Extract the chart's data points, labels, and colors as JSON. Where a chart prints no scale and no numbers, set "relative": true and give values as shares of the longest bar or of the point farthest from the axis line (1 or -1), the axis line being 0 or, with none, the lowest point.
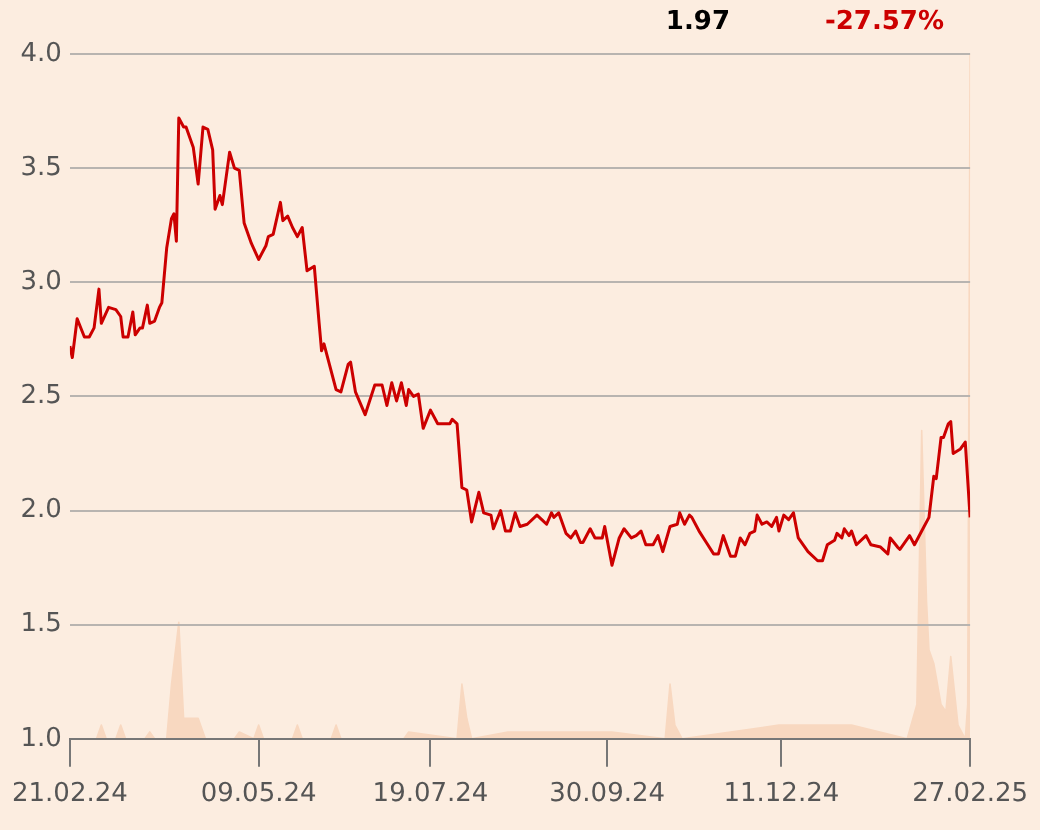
{
  "chart_data": [
    {
      "type": "line",
      "annotations": [
        "1.97",
        "-27.57%"
      ],
      "xlim": [
        "2024-02-21",
        "2025-02-27"
      ],
      "xticks": [
        {
          "value": "2024-02-21",
          "label": "21.02.24"
        },
        {
          "value": "2024-05-09",
          "label": "09.05.24"
        },
        {
          "value": "2024-07-19",
          "label": "19.07.24"
        },
        {
          "value": "2024-09-30",
          "label": "30.09.24"
        },
        {
          "value": "2024-12-11",
          "label": "11.12.24"
        },
        {
          "value": "2025-02-27",
          "label": "27.02.25"
        }
      ],
      "ylim": [
        1,
        4
      ],
      "yticks": [
        {
          "value": 1,
          "label": "1.0"
        },
        {
          "value": 1.5,
          "label": "1.5"
        },
        {
          "value": 2,
          "label": "2.0"
        },
        {
          "value": 2.5,
          "label": "2.5"
        },
        {
          "value": 3,
          "label": "3.0"
        },
        {
          "value": 3.5,
          "label": "3.5"
        },
        {
          "value": 4,
          "label": "4.0"
        }
      ],
      "grid": "y",
      "legend": false,
      "marker": "none",
      "line_style": "solid",
      "x": [
        "2024-02-21",
        "2024-02-22",
        "2024-02-24",
        "2024-02-27",
        "2024-02-29",
        "2024-03-02",
        "2024-03-04",
        "2024-03-05",
        "2024-03-08",
        "2024-03-11",
        "2024-03-13",
        "2024-03-14",
        "2024-03-16",
        "2024-03-18",
        "2024-03-19",
        "2024-03-21",
        "2024-03-22",
        "2024-03-24",
        "2024-03-25",
        "2024-03-27",
        "2024-03-29",
        "2024-03-30",
        "2024-04-01",
        "2024-04-03",
        "2024-04-04",
        "2024-04-05",
        "2024-04-06",
        "2024-04-08",
        "2024-04-09",
        "2024-04-12",
        "2024-04-14",
        "2024-04-16",
        "2024-04-18",
        "2024-04-20",
        "2024-04-21",
        "2024-04-23",
        "2024-04-24",
        "2024-04-27",
        "2024-04-29",
        "2024-05-01",
        "2024-05-03",
        "2024-05-06",
        "2024-05-09",
        "2024-05-12",
        "2024-05-13",
        "2024-05-15",
        "2024-05-18",
        "2024-05-19",
        "2024-05-21",
        "2024-05-23",
        "2024-05-25",
        "2024-05-27",
        "2024-05-29",
        "2024-06-01",
        "2024-06-03",
        "2024-06-04",
        "2024-06-05",
        "2024-06-10",
        "2024-06-12",
        "2024-06-15",
        "2024-06-16",
        "2024-06-18",
        "2024-06-22",
        "2024-06-26",
        "2024-06-29",
        "2024-07-01",
        "2024-07-03",
        "2024-07-05",
        "2024-07-07",
        "2024-07-09",
        "2024-07-10",
        "2024-07-12",
        "2024-07-14",
        "2024-07-16",
        "2024-07-19",
        "2024-07-22",
        "2024-07-27",
        "2024-07-28",
        "2024-07-30",
        "2024-08-01",
        "2024-08-03",
        "2024-08-05",
        "2024-08-08",
        "2024-08-10",
        "2024-08-13",
        "2024-08-14",
        "2024-08-17",
        "2024-08-19",
        "2024-08-21",
        "2024-08-23",
        "2024-08-25",
        "2024-08-28",
        "2024-09-01",
        "2024-09-03",
        "2024-09-05",
        "2024-09-07",
        "2024-09-08",
        "2024-09-10",
        "2024-09-13",
        "2024-09-15",
        "2024-09-17",
        "2024-09-19",
        "2024-09-20",
        "2024-09-23",
        "2024-09-25",
        "2024-09-28",
        "2024-09-29",
        "2024-10-02",
        "2024-10-05",
        "2024-10-07",
        "2024-10-10",
        "2024-10-12",
        "2024-10-14",
        "2024-10-16",
        "2024-10-19",
        "2024-10-21",
        "2024-10-23",
        "2024-10-26",
        "2024-10-29",
        "2024-10-30",
        "2024-11-01",
        "2024-11-03",
        "2024-11-04",
        "2024-11-07",
        "2024-11-10",
        "2024-11-13",
        "2024-11-15",
        "2024-11-17",
        "2024-11-20",
        "2024-11-22",
        "2024-11-24",
        "2024-11-26",
        "2024-11-28",
        "2024-11-30",
        "2024-12-01",
        "2024-12-03",
        "2024-12-05",
        "2024-12-07",
        "2024-12-09",
        "2024-12-10",
        "2024-12-12",
        "2024-12-14",
        "2024-12-16",
        "2024-12-18",
        "2024-12-22",
        "2024-12-26",
        "2024-12-28",
        "2024-12-30",
        "2025-01-02",
        "2025-01-03",
        "2025-01-05",
        "2025-01-06",
        "2025-01-08",
        "2025-01-09",
        "2025-01-11",
        "2025-01-15",
        "2025-01-17",
        "2025-01-21",
        "2025-01-24",
        "2025-01-25",
        "2025-01-28",
        "2025-01-29",
        "2025-02-02",
        "2025-02-04",
        "2025-02-07",
        "2025-02-10",
        "2025-02-12",
        "2025-02-13",
        "2025-02-15",
        "2025-02-16",
        "2025-02-18",
        "2025-02-19",
        "2025-02-20",
        "2025-02-23",
        "2025-02-25",
        "2025-02-27"
      ],
      "series": [
        {
          "color": "#cc0000",
          "values": [
            2.72,
            2.67,
            2.84,
            2.76,
            2.76,
            2.8,
            2.97,
            2.82,
            2.89,
            2.88,
            2.85,
            2.76,
            2.76,
            2.87,
            2.77,
            2.8,
            2.8,
            2.9,
            2.82,
            2.83,
            2.89,
            2.91,
            3.15,
            3.28,
            3.3,
            3.18,
            3.72,
            3.68,
            3.68,
            3.59,
            3.43,
            3.68,
            3.67,
            3.58,
            3.32,
            3.38,
            3.34,
            3.57,
            3.5,
            3.49,
            3.26,
            3.17,
            3.1,
            3.16,
            3.2,
            3.21,
            3.35,
            3.27,
            3.29,
            3.24,
            3.2,
            3.24,
            3.05,
            3.07,
            2.82,
            2.7,
            2.73,
            2.53,
            2.52,
            2.64,
            2.65,
            2.52,
            2.42,
            2.55,
            2.55,
            2.46,
            2.56,
            2.48,
            2.56,
            2.46,
            2.53,
            2.5,
            2.51,
            2.36,
            2.44,
            2.38,
            2.38,
            2.4,
            2.38,
            2.1,
            2.09,
            1.95,
            2.08,
            1.99,
            1.98,
            1.92,
            2.0,
            1.91,
            1.91,
            1.99,
            1.93,
            1.94,
            1.98,
            1.96,
            1.94,
            1.99,
            1.97,
            1.99,
            1.9,
            1.88,
            1.91,
            1.86,
            1.86,
            1.92,
            1.88,
            1.88,
            1.93,
            1.76,
            1.88,
            1.92,
            1.88,
            1.89,
            1.91,
            1.85,
            1.85,
            1.89,
            1.82,
            1.93,
            1.94,
            1.99,
            1.94,
            1.98,
            1.97,
            1.91,
            1.86,
            1.81,
            1.81,
            1.89,
            1.8,
            1.8,
            1.88,
            1.85,
            1.9,
            1.91,
            1.98,
            1.94,
            1.95,
            1.93,
            1.97,
            1.91,
            1.98,
            1.96,
            1.99,
            1.88,
            1.82,
            1.78,
            1.78,
            1.85,
            1.87,
            1.9,
            1.88,
            1.92,
            1.89,
            1.91,
            1.85,
            1.89,
            1.85,
            1.84,
            1.81,
            1.88,
            1.84,
            1.83,
            1.89,
            1.85,
            1.91,
            1.97,
            2.15,
            2.14,
            2.32,
            2.32,
            2.38,
            2.39,
            2.25,
            2.27,
            2.3,
            1.97
          ]
        }
      ]
    },
    {
      "type": "area",
      "relative": true,
      "legend": false,
      "xlim": [
        "2024-02-21",
        "2025-02-27"
      ],
      "x": [
        "2024-02-21",
        "2024-03-03",
        "2024-03-05",
        "2024-03-07",
        "2024-03-11",
        "2024-03-13",
        "2024-03-15",
        "2024-03-23",
        "2024-03-25",
        "2024-03-27",
        "2024-04-01",
        "2024-04-03",
        "2024-04-06",
        "2024-04-08",
        "2024-04-09",
        "2024-04-14",
        "2024-04-17",
        "2024-04-29",
        "2024-05-01",
        "2024-05-07",
        "2024-05-09",
        "2024-05-11",
        "2024-05-23",
        "2024-05-25",
        "2024-05-27",
        "2024-06-08",
        "2024-06-10",
        "2024-06-12",
        "2024-07-08",
        "2024-07-10",
        "2024-07-30",
        "2024-08-01",
        "2024-08-03",
        "2024-08-05",
        "2024-08-20",
        "2024-09-13",
        "2024-10-02",
        "2024-10-24",
        "2024-10-26",
        "2024-10-28",
        "2024-10-31",
        "2024-11-20",
        "2024-12-10",
        "2025-01-09",
        "2025-02-01",
        "2025-02-05",
        "2025-02-07",
        "2025-02-09",
        "2025-02-10",
        "2025-02-12",
        "2025-02-15",
        "2025-02-17",
        "2025-02-19",
        "2025-02-22",
        "2025-02-25",
        "2025-02-26",
        "2025-02-27"
      ],
      "series": [
        {
          "color": "#f8d8c0",
          "values": [
            0,
            0,
            0.02,
            0,
            0,
            0.02,
            0,
            0,
            0.01,
            0,
            0,
            0.08,
            0.17,
            0.03,
            0.03,
            0.03,
            0,
            0,
            0.01,
            0,
            0.02,
            0,
            0,
            0.02,
            0,
            0,
            0.02,
            0,
            0,
            0.01,
            0,
            0.08,
            0.03,
            0,
            0.01,
            0.01,
            0.01,
            0,
            0.08,
            0.02,
            0,
            0.01,
            0.02,
            0.02,
            0,
            0.05,
            0.45,
            0.2,
            0.13,
            0.11,
            0.05,
            0.04,
            0.12,
            0.02,
            0,
            0.05,
            1
          ]
        }
      ]
    }
  ]
}
